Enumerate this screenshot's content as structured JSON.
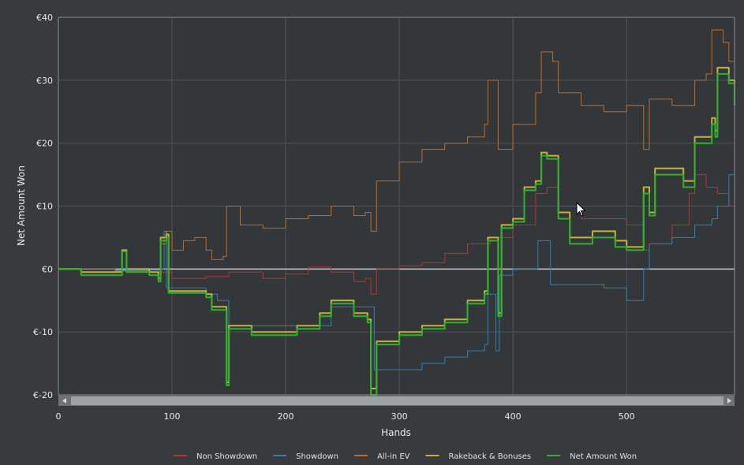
{
  "chart_data": {
    "type": "line",
    "xlabel": "Hands",
    "ylabel": "Net Amount Won",
    "xlim": [
      0,
      595
    ],
    "ylim": [
      -20,
      40
    ],
    "x_ticks": [
      0,
      100,
      200,
      300,
      400,
      500
    ],
    "y_ticks": [
      {
        "value": 40,
        "label": "€40"
      },
      {
        "value": 30,
        "label": "€30"
      },
      {
        "value": 20,
        "label": "€20"
      },
      {
        "value": 10,
        "label": "€10"
      },
      {
        "value": 0,
        "label": "€0"
      },
      {
        "value": -10,
        "label": "€-10"
      },
      {
        "value": -20,
        "label": "€-20"
      }
    ],
    "grid": true,
    "legend_position": "bottom",
    "series": [
      {
        "name": "Non Showdown",
        "color": "#b83232",
        "points": [
          [
            0,
            0
          ],
          [
            20,
            -0.5
          ],
          [
            50,
            -0.3
          ],
          [
            80,
            -0.5
          ],
          [
            95,
            -0.5
          ],
          [
            100,
            -1.5
          ],
          [
            130,
            -1.2
          ],
          [
            150,
            -0.5
          ],
          [
            180,
            -1.5
          ],
          [
            200,
            -0.8
          ],
          [
            220,
            0.3
          ],
          [
            240,
            -0.5
          ],
          [
            260,
            -2
          ],
          [
            270,
            -1.5
          ],
          [
            275,
            -4
          ],
          [
            280,
            0
          ],
          [
            300,
            0.5
          ],
          [
            320,
            1
          ],
          [
            340,
            2.5
          ],
          [
            360,
            4
          ],
          [
            380,
            5
          ],
          [
            400,
            7
          ],
          [
            420,
            12
          ],
          [
            430,
            13
          ],
          [
            440,
            10
          ],
          [
            460,
            8
          ],
          [
            480,
            8
          ],
          [
            500,
            7
          ],
          [
            515,
            3
          ],
          [
            520,
            4
          ],
          [
            540,
            7
          ],
          [
            555,
            12
          ],
          [
            560,
            15
          ],
          [
            570,
            13
          ],
          [
            580,
            12
          ],
          [
            590,
            10
          ],
          [
            595,
            9
          ]
        ]
      },
      {
        "name": "Showdown",
        "color": "#2f7fb5",
        "points": [
          [
            0,
            0
          ],
          [
            50,
            -0.2
          ],
          [
            90,
            0
          ],
          [
            93,
            6
          ],
          [
            95,
            -3
          ],
          [
            130,
            -4
          ],
          [
            140,
            -5
          ],
          [
            150,
            -9
          ],
          [
            200,
            -9
          ],
          [
            240,
            -6
          ],
          [
            275,
            -6
          ],
          [
            278,
            -16
          ],
          [
            300,
            -16
          ],
          [
            320,
            -15
          ],
          [
            340,
            -14
          ],
          [
            360,
            -13
          ],
          [
            375,
            -12
          ],
          [
            378,
            -4
          ],
          [
            383,
            -4
          ],
          [
            385,
            -13
          ],
          [
            388,
            -1
          ],
          [
            400,
            0
          ],
          [
            420,
            0
          ],
          [
            422,
            4.5
          ],
          [
            430,
            4.5
          ],
          [
            433,
            -2.5
          ],
          [
            460,
            -2.5
          ],
          [
            480,
            -3
          ],
          [
            500,
            -5
          ],
          [
            513,
            -5
          ],
          [
            515,
            0
          ],
          [
            520,
            4
          ],
          [
            540,
            5
          ],
          [
            560,
            7
          ],
          [
            575,
            8
          ],
          [
            580,
            10
          ],
          [
            590,
            15
          ],
          [
            595,
            16.5
          ]
        ]
      },
      {
        "name": "All-in EV",
        "color": "#c06a24",
        "points": [
          [
            0,
            0
          ],
          [
            50,
            -0.3
          ],
          [
            80,
            -0.5
          ],
          [
            90,
            4
          ],
          [
            95,
            6
          ],
          [
            100,
            3
          ],
          [
            110,
            4.5
          ],
          [
            120,
            5
          ],
          [
            130,
            3
          ],
          [
            135,
            1.5
          ],
          [
            145,
            2
          ],
          [
            148,
            10
          ],
          [
            160,
            7
          ],
          [
            180,
            6.5
          ],
          [
            200,
            8
          ],
          [
            220,
            8.5
          ],
          [
            240,
            10
          ],
          [
            260,
            8.5
          ],
          [
            270,
            9
          ],
          [
            275,
            6
          ],
          [
            280,
            14
          ],
          [
            300,
            17
          ],
          [
            320,
            19
          ],
          [
            340,
            20
          ],
          [
            360,
            21
          ],
          [
            375,
            23
          ],
          [
            378,
            30
          ],
          [
            385,
            30
          ],
          [
            387,
            19
          ],
          [
            400,
            23
          ],
          [
            420,
            28
          ],
          [
            425,
            34.5
          ],
          [
            435,
            33
          ],
          [
            440,
            28
          ],
          [
            460,
            26
          ],
          [
            480,
            25
          ],
          [
            500,
            26
          ],
          [
            515,
            19
          ],
          [
            520,
            27
          ],
          [
            540,
            26
          ],
          [
            555,
            26
          ],
          [
            560,
            30
          ],
          [
            570,
            31
          ],
          [
            575,
            38
          ],
          [
            585,
            36
          ],
          [
            590,
            33
          ],
          [
            595,
            33
          ]
        ]
      },
      {
        "name": "Rakeback & Bonuses",
        "color": "#c2b23a",
        "points": [
          [
            0,
            0
          ],
          [
            20,
            -0.5
          ],
          [
            50,
            -0.5
          ],
          [
            56,
            3
          ],
          [
            60,
            0
          ],
          [
            80,
            -0.5
          ],
          [
            88,
            -1.5
          ],
          [
            90,
            5
          ],
          [
            95,
            5.5
          ],
          [
            97,
            -3.5
          ],
          [
            130,
            -4
          ],
          [
            135,
            -6
          ],
          [
            145,
            -6
          ],
          [
            148,
            -18
          ],
          [
            150,
            -9
          ],
          [
            170,
            -10
          ],
          [
            190,
            -10
          ],
          [
            210,
            -9
          ],
          [
            230,
            -7
          ],
          [
            240,
            -5
          ],
          [
            260,
            -7
          ],
          [
            272,
            -8
          ],
          [
            275,
            -19
          ],
          [
            280,
            -11.5
          ],
          [
            300,
            -10
          ],
          [
            320,
            -9
          ],
          [
            340,
            -8
          ],
          [
            360,
            -5
          ],
          [
            375,
            -3.5
          ],
          [
            378,
            5
          ],
          [
            385,
            5
          ],
          [
            387,
            -7
          ],
          [
            390,
            7
          ],
          [
            400,
            8
          ],
          [
            410,
            13
          ],
          [
            420,
            14
          ],
          [
            425,
            18.5
          ],
          [
            430,
            18
          ],
          [
            440,
            9
          ],
          [
            450,
            5
          ],
          [
            470,
            6
          ],
          [
            490,
            4.5
          ],
          [
            500,
            3.5
          ],
          [
            512,
            3.5
          ],
          [
            515,
            13
          ],
          [
            520,
            9
          ],
          [
            525,
            16
          ],
          [
            540,
            16
          ],
          [
            550,
            14
          ],
          [
            560,
            21
          ],
          [
            575,
            24
          ],
          [
            578,
            22
          ],
          [
            580,
            32
          ],
          [
            590,
            30
          ],
          [
            595,
            27
          ]
        ]
      },
      {
        "name": "Net Amount Won",
        "color": "#2fb02f",
        "points": [
          [
            0,
            0
          ],
          [
            20,
            -1
          ],
          [
            50,
            -1
          ],
          [
            56,
            2.8
          ],
          [
            60,
            -0.5
          ],
          [
            80,
            -1
          ],
          [
            88,
            -2
          ],
          [
            90,
            4.5
          ],
          [
            95,
            5
          ],
          [
            97,
            -3.8
          ],
          [
            130,
            -4.5
          ],
          [
            135,
            -6.5
          ],
          [
            145,
            -6.5
          ],
          [
            148,
            -18.5
          ],
          [
            150,
            -9.5
          ],
          [
            170,
            -10.5
          ],
          [
            190,
            -10.5
          ],
          [
            210,
            -9.5
          ],
          [
            230,
            -7.5
          ],
          [
            240,
            -5.5
          ],
          [
            260,
            -7.5
          ],
          [
            272,
            -8.5
          ],
          [
            275,
            -20
          ],
          [
            280,
            -12
          ],
          [
            300,
            -10.5
          ],
          [
            320,
            -9.5
          ],
          [
            340,
            -8.5
          ],
          [
            360,
            -5.5
          ],
          [
            375,
            -4
          ],
          [
            378,
            4.5
          ],
          [
            385,
            4.5
          ],
          [
            387,
            -7.5
          ],
          [
            390,
            6.5
          ],
          [
            400,
            7.5
          ],
          [
            410,
            12.5
          ],
          [
            420,
            13.5
          ],
          [
            425,
            18
          ],
          [
            430,
            17.5
          ],
          [
            440,
            8
          ],
          [
            450,
            4
          ],
          [
            470,
            5
          ],
          [
            490,
            3.5
          ],
          [
            500,
            3
          ],
          [
            512,
            3
          ],
          [
            515,
            12
          ],
          [
            520,
            8.5
          ],
          [
            525,
            15
          ],
          [
            540,
            15
          ],
          [
            550,
            13
          ],
          [
            560,
            20
          ],
          [
            575,
            23
          ],
          [
            578,
            21
          ],
          [
            580,
            31
          ],
          [
            590,
            29.5
          ],
          [
            595,
            26
          ]
        ]
      }
    ]
  }
}
